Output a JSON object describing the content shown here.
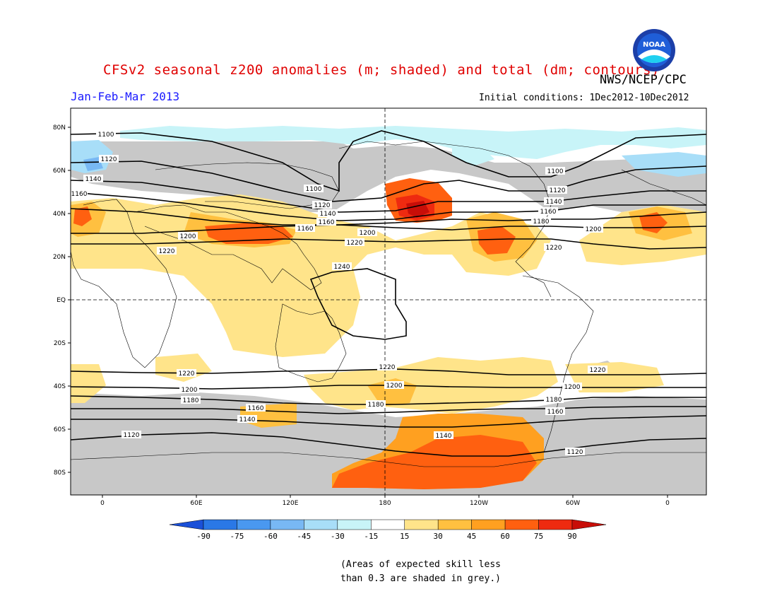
{
  "title": "CFSv2 seasonal z200 anomalies (m; shaded) and total (dm; contours)",
  "agency": "NWS/NCEP/CPC",
  "period": "Jan-Feb-Mar 2013",
  "initial_conditions": "Initial conditions: 1Dec2012-10Dec2012",
  "logo_text": "NOAA",
  "note_line1": "(Areas of expected skill less",
  "note_line2": "than 0.3 are shaded in grey.)",
  "lat_labels": [
    "80N",
    "60N",
    "40N",
    "20N",
    "EQ",
    "20S",
    "40S",
    "60S",
    "80S"
  ],
  "lon_labels": [
    "0",
    "60E",
    "120E",
    "180",
    "120W",
    "60W",
    "0"
  ],
  "colorbar": {
    "labels": [
      "-90",
      "-75",
      "-60",
      "-45",
      "-30",
      "-15",
      "15",
      "30",
      "45",
      "60",
      "75",
      "90"
    ],
    "colors": [
      "#1a50d8",
      "#2a78e6",
      "#4a98f0",
      "#78b8f4",
      "#a8def8",
      "#c8f4f8",
      "#ffffff",
      "#ffe48a",
      "#ffc040",
      "#ffa020",
      "#ff6010",
      "#ee2a10",
      "#c80e08"
    ]
  },
  "contour_labels": [
    {
      "text": "1100",
      "where": "arctic-left"
    },
    {
      "text": "1100",
      "where": "north-pacific"
    },
    {
      "text": "1100",
      "where": "arctic-right"
    },
    {
      "text": "1120",
      "where": "atlantic-europe"
    },
    {
      "text": "1120",
      "where": "north-pacific"
    },
    {
      "text": "1120",
      "where": "north-america"
    },
    {
      "text": "1140",
      "where": "europe"
    },
    {
      "text": "1140",
      "where": "north-pacific"
    },
    {
      "text": "1140",
      "where": "north-america"
    },
    {
      "text": "1160",
      "where": "europe"
    },
    {
      "text": "1160",
      "where": "north-pacific"
    },
    {
      "text": "1160",
      "where": "north-america"
    },
    {
      "text": "1160",
      "where": "asia"
    },
    {
      "text": "1180",
      "where": "north-america"
    },
    {
      "text": "1200",
      "where": "middle-east"
    },
    {
      "text": "1200",
      "where": "central-pacific"
    },
    {
      "text": "1200",
      "where": "atlantic"
    },
    {
      "text": "1220",
      "where": "africa"
    },
    {
      "text": "1220",
      "where": "central-pacific"
    },
    {
      "text": "1220",
      "where": "gulf"
    },
    {
      "text": "1240",
      "where": "west-pacific"
    },
    {
      "text": "1220",
      "where": "south-indian"
    },
    {
      "text": "1220",
      "where": "south-pacific"
    },
    {
      "text": "1220",
      "where": "south-atlantic"
    },
    {
      "text": "1200",
      "where": "south-atlantic-west"
    },
    {
      "text": "1200",
      "where": "new-zealand"
    },
    {
      "text": "1200",
      "where": "south-america"
    },
    {
      "text": "1180",
      "where": "south-atlantic-west"
    },
    {
      "text": "1180",
      "where": "south-pacific"
    },
    {
      "text": "1180",
      "where": "south-america"
    },
    {
      "text": "1160",
      "where": "south-indian"
    },
    {
      "text": "1160",
      "where": "south-america"
    },
    {
      "text": "1140",
      "where": "south-indian"
    },
    {
      "text": "1140",
      "where": "south-pacific"
    },
    {
      "text": "1120",
      "where": "southern-ocean"
    },
    {
      "text": "1120",
      "where": "drake-passage"
    }
  ]
}
